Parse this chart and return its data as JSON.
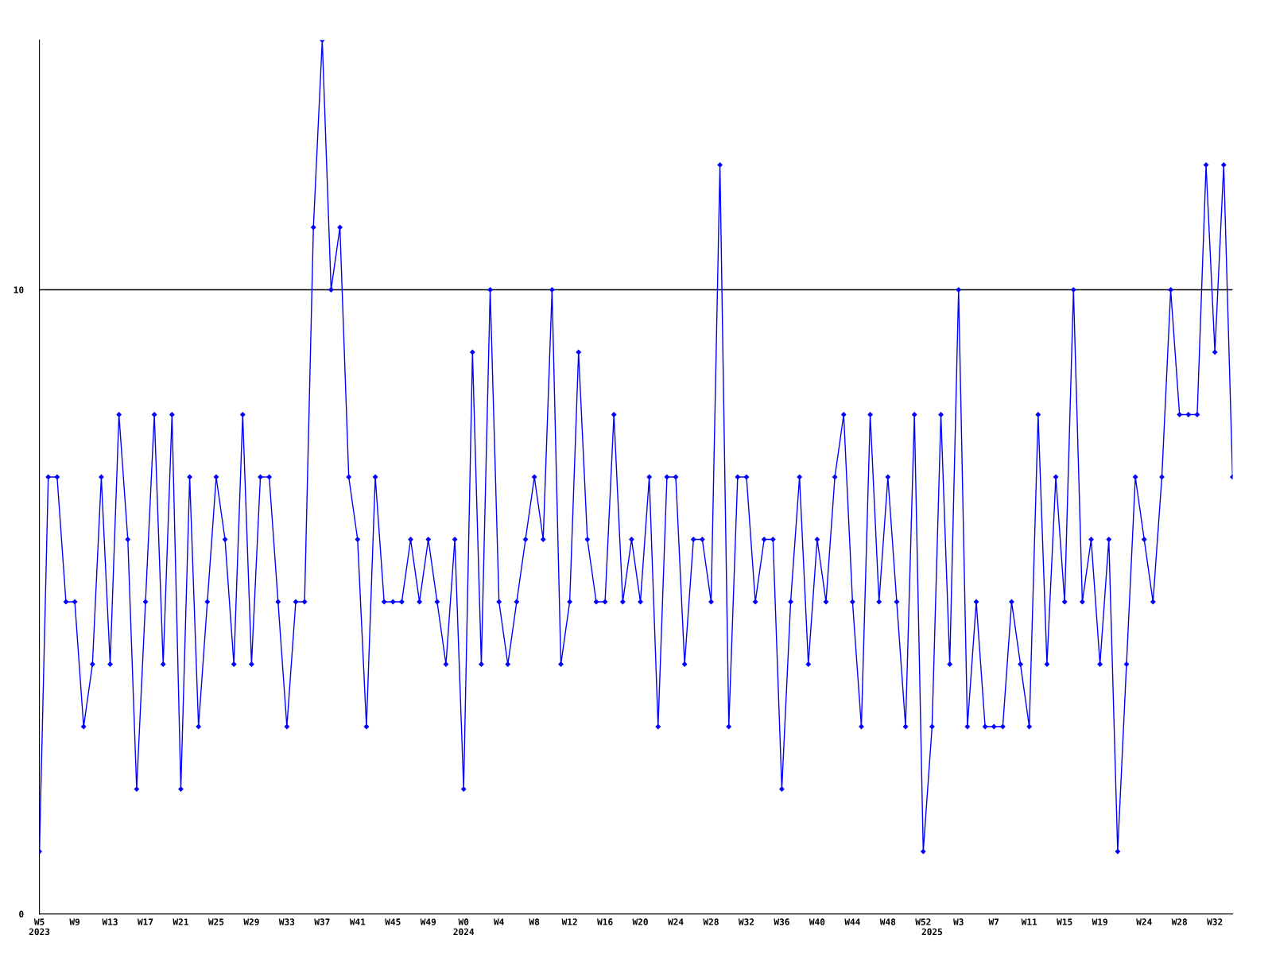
{
  "chart_data": {
    "type": "line",
    "categories": [
      "W5\n2023",
      null,
      null,
      null,
      "W9",
      null,
      null,
      null,
      "W13",
      null,
      null,
      null,
      "W17",
      null,
      null,
      null,
      "W21",
      null,
      null,
      null,
      "W25",
      null,
      null,
      null,
      "W29",
      null,
      null,
      null,
      "W33",
      null,
      null,
      null,
      "W37",
      null,
      null,
      null,
      "W41",
      null,
      null,
      null,
      "W45",
      null,
      null,
      null,
      "W49",
      null,
      null,
      null,
      "W0\n2024",
      null,
      null,
      null,
      "W4",
      null,
      null,
      null,
      "W8",
      null,
      null,
      null,
      "W12",
      null,
      null,
      null,
      "W16",
      null,
      null,
      null,
      "W20",
      null,
      null,
      null,
      "W24",
      null,
      null,
      null,
      "W28",
      null,
      null,
      null,
      "W32",
      null,
      null,
      null,
      "W36",
      null,
      null,
      null,
      "W40",
      null,
      null,
      null,
      "W44",
      null,
      null,
      null,
      "W48",
      null,
      null,
      null,
      "W52",
      "\n2025",
      null,
      null,
      "W3",
      null,
      null,
      null,
      "W7",
      null,
      null,
      null,
      "W11",
      null,
      null,
      null,
      "W15",
      null,
      null,
      null,
      "W19",
      null,
      null,
      null,
      null,
      "W24",
      null,
      null,
      null,
      "W28",
      null,
      null,
      null,
      "W32",
      null,
      null
    ],
    "series": [
      {
        "color": "#0000ff",
        "values": [
          1,
          7,
          7,
          5,
          5,
          3,
          4,
          7,
          4,
          8,
          6,
          2,
          5,
          8,
          4,
          8,
          2,
          7,
          3,
          5,
          7,
          6,
          4,
          8,
          4,
          7,
          7,
          5,
          3,
          5,
          5,
          11,
          14,
          10,
          11,
          7,
          6,
          3,
          7,
          5,
          5,
          5,
          6,
          5,
          6,
          5,
          4,
          6,
          2,
          9,
          4,
          10,
          5,
          4,
          5,
          6,
          7,
          6,
          10,
          4,
          5,
          9,
          6,
          5,
          5,
          8,
          5,
          6,
          5,
          7,
          3,
          7,
          7,
          4,
          6,
          6,
          5,
          12,
          3,
          7,
          7,
          5,
          6,
          6,
          2,
          5,
          7,
          4,
          6,
          5,
          7,
          8,
          5,
          3,
          8,
          5,
          7,
          5,
          3,
          8,
          1,
          3,
          8,
          4,
          10,
          3,
          5,
          3,
          3,
          3,
          5,
          4,
          3,
          8,
          4,
          7,
          5,
          10,
          5,
          6,
          4,
          6,
          1,
          4,
          7,
          6,
          5,
          7,
          10,
          8,
          8,
          8,
          12,
          9,
          12,
          7
        ]
      }
    ],
    "ylim": [
      0,
      14
    ],
    "yticks": [
      0,
      10
    ],
    "ref_lines": [
      {
        "axis": "y",
        "value": 10,
        "color": "#000000"
      }
    ],
    "marker": "diamond",
    "line_style": "solid",
    "grid": false
  }
}
